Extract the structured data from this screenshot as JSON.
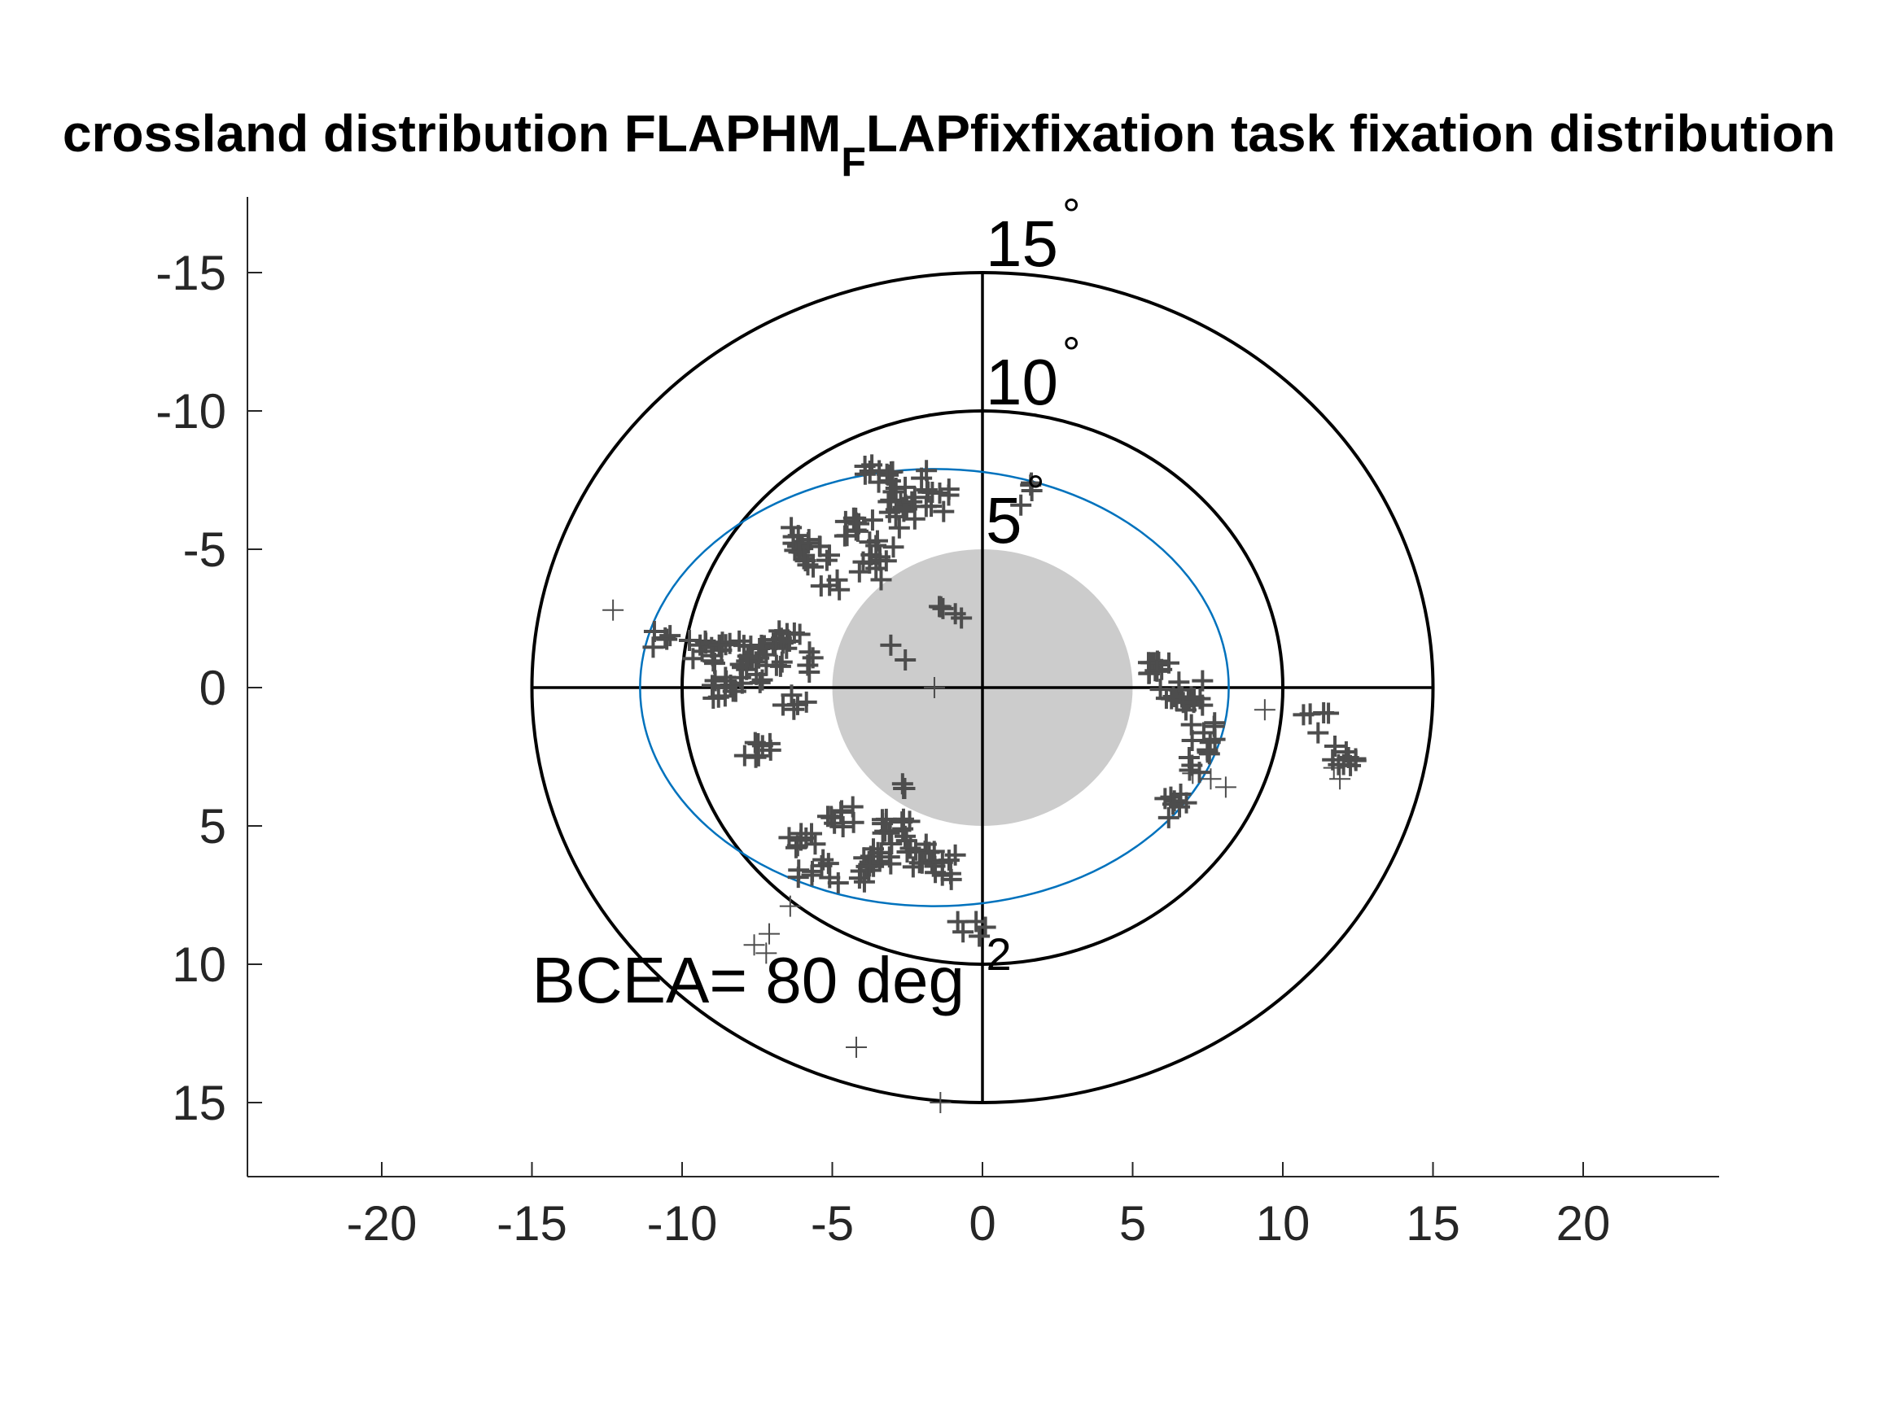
{
  "chart_data": {
    "type": "scatter",
    "title": {
      "main": "crossland distribution FLAPHM",
      "subscript": "F",
      "rest": "LAPfixfixation task fixation distribution"
    },
    "xlim": [
      -25,
      25
    ],
    "ylim": [
      -17.5,
      17.5
    ],
    "y_reversed": true,
    "xticks": [
      -20,
      -15,
      -10,
      -5,
      0,
      5,
      10,
      15,
      20
    ],
    "yticks": [
      -15,
      -10,
      -5,
      0,
      5,
      10,
      15
    ],
    "grid": false,
    "rings": [
      {
        "radius": 15,
        "label": "15",
        "unit": "°",
        "color": "#000000"
      },
      {
        "radius": 10,
        "label": "10",
        "unit": "°",
        "color": "#000000"
      },
      {
        "radius": 5,
        "label": "5",
        "unit": "°",
        "color": "#000000"
      }
    ],
    "scotoma": {
      "cx": 0,
      "cy": 0,
      "radius": 5,
      "color": "#cccccc"
    },
    "bcea_ellipse": {
      "cx": -1.6,
      "cy": 0,
      "rx": 9.8,
      "ry": 7.9,
      "color": "#0072bd"
    },
    "bcea_label": {
      "text": "BCEA= 80 deg",
      "superscript": "2",
      "x": -15,
      "y": 10.5
    },
    "marker_color": "#4d4d4d",
    "clusters": [
      {
        "x": -10.5,
        "y": -1.8,
        "n": 5
      },
      {
        "x": -9.4,
        "y": -1.3,
        "n": 7
      },
      {
        "x": -8.6,
        "y": -1.4,
        "n": 9
      },
      {
        "x": -8.5,
        "y": 0,
        "n": 12
      },
      {
        "x": -7.8,
        "y": -0.6,
        "n": 9
      },
      {
        "x": -7.4,
        "y": -1.4,
        "n": 10
      },
      {
        "x": -6.9,
        "y": -1.1,
        "n": 9
      },
      {
        "x": -6.4,
        "y": -1.6,
        "n": 8
      },
      {
        "x": -6.1,
        "y": 0.4,
        "n": 5
      },
      {
        "x": -5.3,
        "y": -0.9,
        "n": 4
      },
      {
        "x": -7.5,
        "y": 2.1,
        "n": 8
      },
      {
        "x": -6.3,
        "y": -5.4,
        "n": 9
      },
      {
        "x": -5.6,
        "y": -4.8,
        "n": 12
      },
      {
        "x": -5.2,
        "y": -3.6,
        "n": 4
      },
      {
        "x": -4.1,
        "y": -5.7,
        "n": 10
      },
      {
        "x": -3.8,
        "y": -4.3,
        "n": 6
      },
      {
        "x": -3.3,
        "y": -5.0,
        "n": 7
      },
      {
        "x": -3.5,
        "y": -7.9,
        "n": 9
      },
      {
        "x": -3.0,
        "y": -7.1,
        "n": 8
      },
      {
        "x": -2.6,
        "y": -6.2,
        "n": 9
      },
      {
        "x": -1.8,
        "y": -6.7,
        "n": 8
      },
      {
        "x": -1.5,
        "y": -7.4,
        "n": 5
      },
      {
        "x": 1.5,
        "y": -7.0,
        "n": 4
      },
      {
        "x": -0.9,
        "y": -2.7,
        "n": 5
      },
      {
        "x": -2.6,
        "y": -1.4,
        "n": 2
      },
      {
        "x": -2.2,
        "y": 3.8,
        "n": 3
      },
      {
        "x": -6.0,
        "y": 5.5,
        "n": 8
      },
      {
        "x": -4.6,
        "y": 4.7,
        "n": 9
      },
      {
        "x": -5.6,
        "y": 6.6,
        "n": 8
      },
      {
        "x": -3.5,
        "y": 6.2,
        "n": 14
      },
      {
        "x": -2.8,
        "y": 5.2,
        "n": 14
      },
      {
        "x": -2.1,
        "y": 6.1,
        "n": 12
      },
      {
        "x": -1.4,
        "y": 6.5,
        "n": 8
      },
      {
        "x": -4.3,
        "y": 6.8,
        "n": 4
      },
      {
        "x": 6.0,
        "y": -0.6,
        "n": 12
      },
      {
        "x": 6.4,
        "y": 0.4,
        "n": 6
      },
      {
        "x": 6.8,
        "y": 0.2,
        "n": 12
      },
      {
        "x": 7.4,
        "y": 1.6,
        "n": 7
      },
      {
        "x": 7.3,
        "y": 2.7,
        "n": 7
      },
      {
        "x": 6.5,
        "y": 4.3,
        "n": 8
      },
      {
        "x": 11.0,
        "y": 1.3,
        "n": 5
      },
      {
        "x": 12.1,
        "y": 2.4,
        "n": 9
      },
      {
        "x": -0.3,
        "y": 8.6,
        "n": 5
      }
    ],
    "singles": [
      {
        "x": -12.3,
        "y": -2.8
      },
      {
        "x": -1.6,
        "y": 0
      },
      {
        "x": 9.4,
        "y": 0.8
      },
      {
        "x": 7.0,
        "y": 3.1
      },
      {
        "x": 7.6,
        "y": 3.3
      },
      {
        "x": 8.1,
        "y": 3.6
      },
      {
        "x": 11.7,
        "y": 2.9
      },
      {
        "x": 11.9,
        "y": 3.3
      },
      {
        "x": -6.4,
        "y": 7.9
      },
      {
        "x": -7.1,
        "y": 8.9
      },
      {
        "x": -7.6,
        "y": 9.3
      },
      {
        "x": -7.2,
        "y": 9.6
      },
      {
        "x": -4.2,
        "y": 13.0
      },
      {
        "x": -1.4,
        "y": 15.0
      }
    ]
  }
}
